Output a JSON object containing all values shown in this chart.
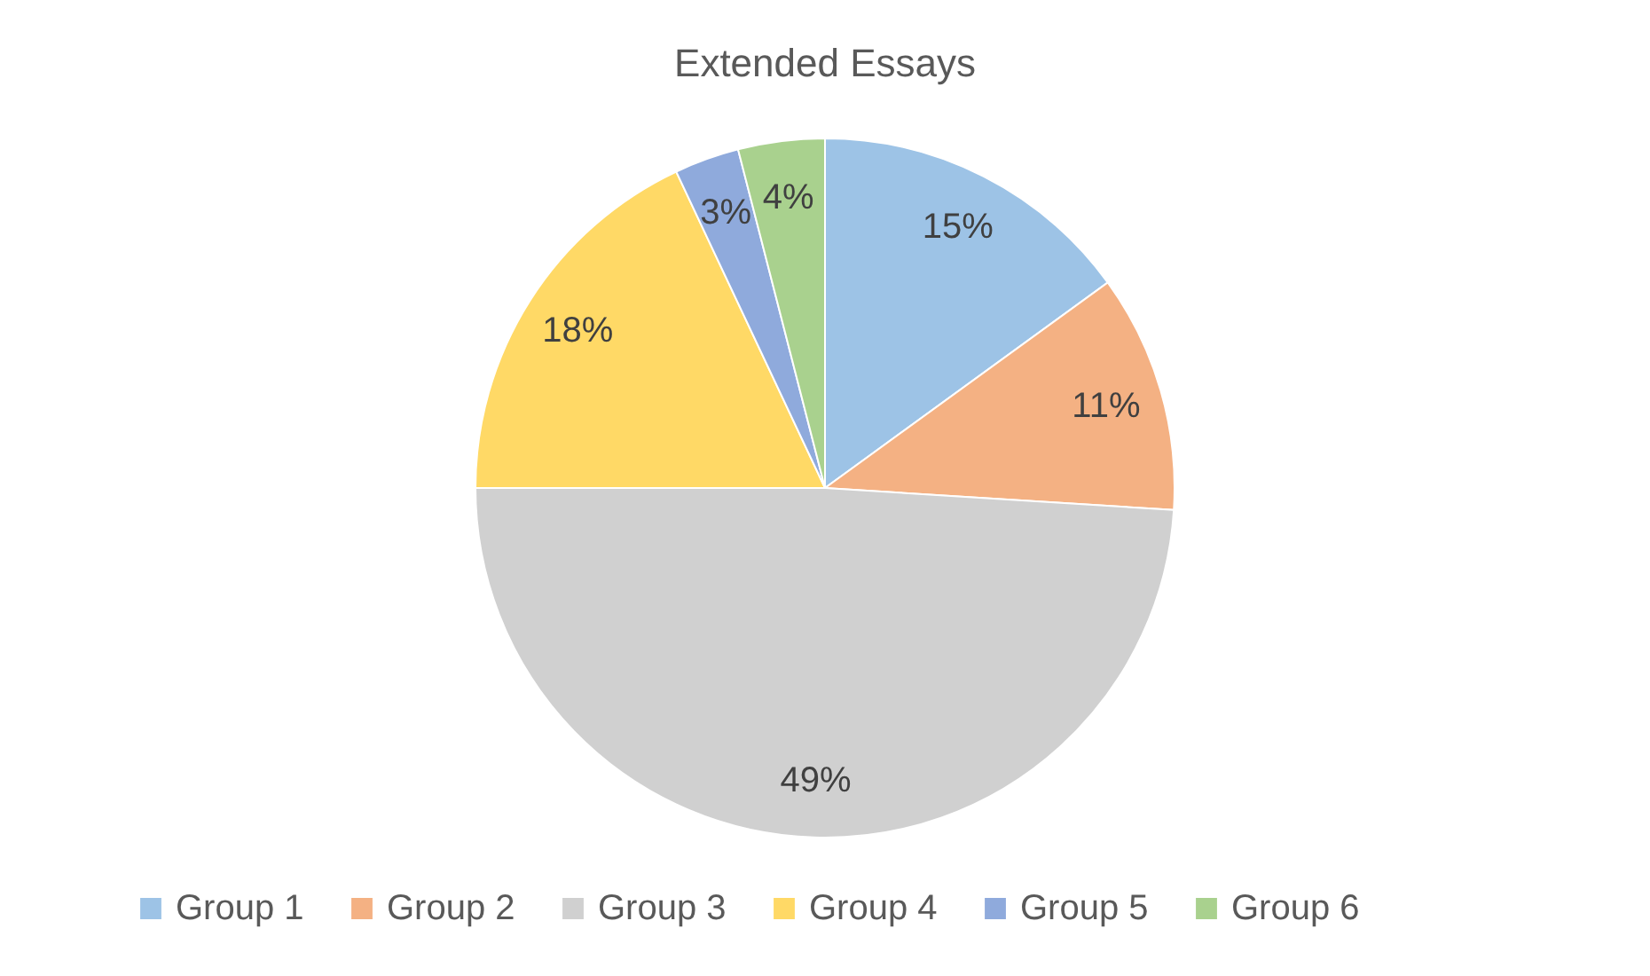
{
  "chart_data": {
    "type": "pie",
    "title": "Extended Essays",
    "categories": [
      "Group 1",
      "Group 2",
      "Group 3",
      "Group 4",
      "Group 5",
      "Group 6"
    ],
    "values": [
      15,
      11,
      49,
      18,
      3,
      4
    ],
    "colors": [
      "#9dc3e6",
      "#f4b183",
      "#d0d0d0",
      "#ffd966",
      "#8faadc",
      "#a9d18e"
    ],
    "value_labels": [
      "15%",
      "11%",
      "49%",
      "18%",
      "3%",
      "4%"
    ],
    "legend": "bottom"
  }
}
